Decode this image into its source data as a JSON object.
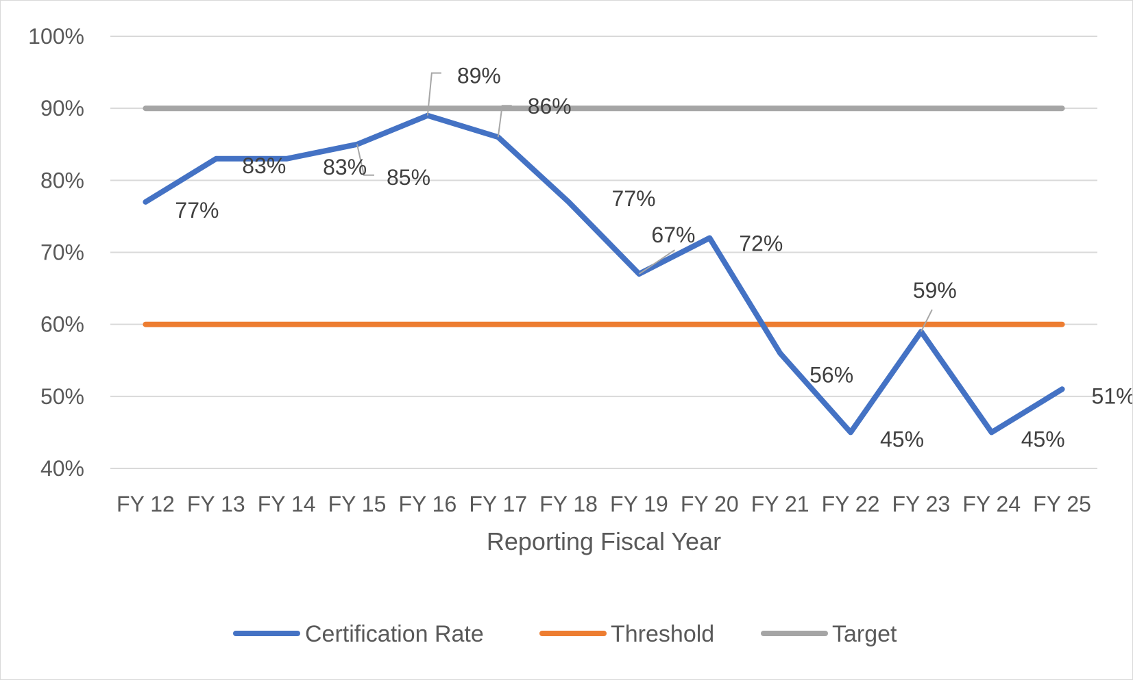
{
  "chart_data": {
    "type": "line",
    "title": "",
    "xlabel": "Reporting Fiscal Year",
    "ylabel": "",
    "ylim": [
      0.4,
      1.0
    ],
    "y_ticks": [
      "40%",
      "50%",
      "60%",
      "70%",
      "80%",
      "90%",
      "100%"
    ],
    "y_tick_values": [
      0.4,
      0.5,
      0.6,
      0.7,
      0.8,
      0.9,
      1.0
    ],
    "grid": true,
    "legend_position": "bottom",
    "categories": [
      "FY 12",
      "FY 13",
      "FY 14",
      "FY 15",
      "FY 16",
      "FY 17",
      "FY 18",
      "FY 19",
      "FY 20",
      "FY 21",
      "FY 22",
      "FY 23",
      "FY 24",
      "FY 25"
    ],
    "series": [
      {
        "name": "Certification Rate",
        "color": "#4472c4",
        "values": [
          0.77,
          0.83,
          0.83,
          0.85,
          0.89,
          0.86,
          0.77,
          0.67,
          0.72,
          0.56,
          0.45,
          0.59,
          0.45,
          0.51
        ],
        "labels": [
          "77%",
          "83%",
          "83%",
          "85%",
          "89%",
          "86%",
          "77%",
          "67%",
          "72%",
          "56%",
          "45%",
          "59%",
          "45%",
          "51%"
        ]
      },
      {
        "name": "Threshold",
        "color": "#ed7d31",
        "values": [
          0.6,
          0.6,
          0.6,
          0.6,
          0.6,
          0.6,
          0.6,
          0.6,
          0.6,
          0.6,
          0.6,
          0.6,
          0.6,
          0.6
        ]
      },
      {
        "name": "Target",
        "color": "#a5a5a5",
        "values": [
          0.9,
          0.9,
          0.9,
          0.9,
          0.9,
          0.9,
          0.9,
          0.9,
          0.9,
          0.9,
          0.9,
          0.9,
          0.9,
          0.9
        ]
      }
    ]
  }
}
